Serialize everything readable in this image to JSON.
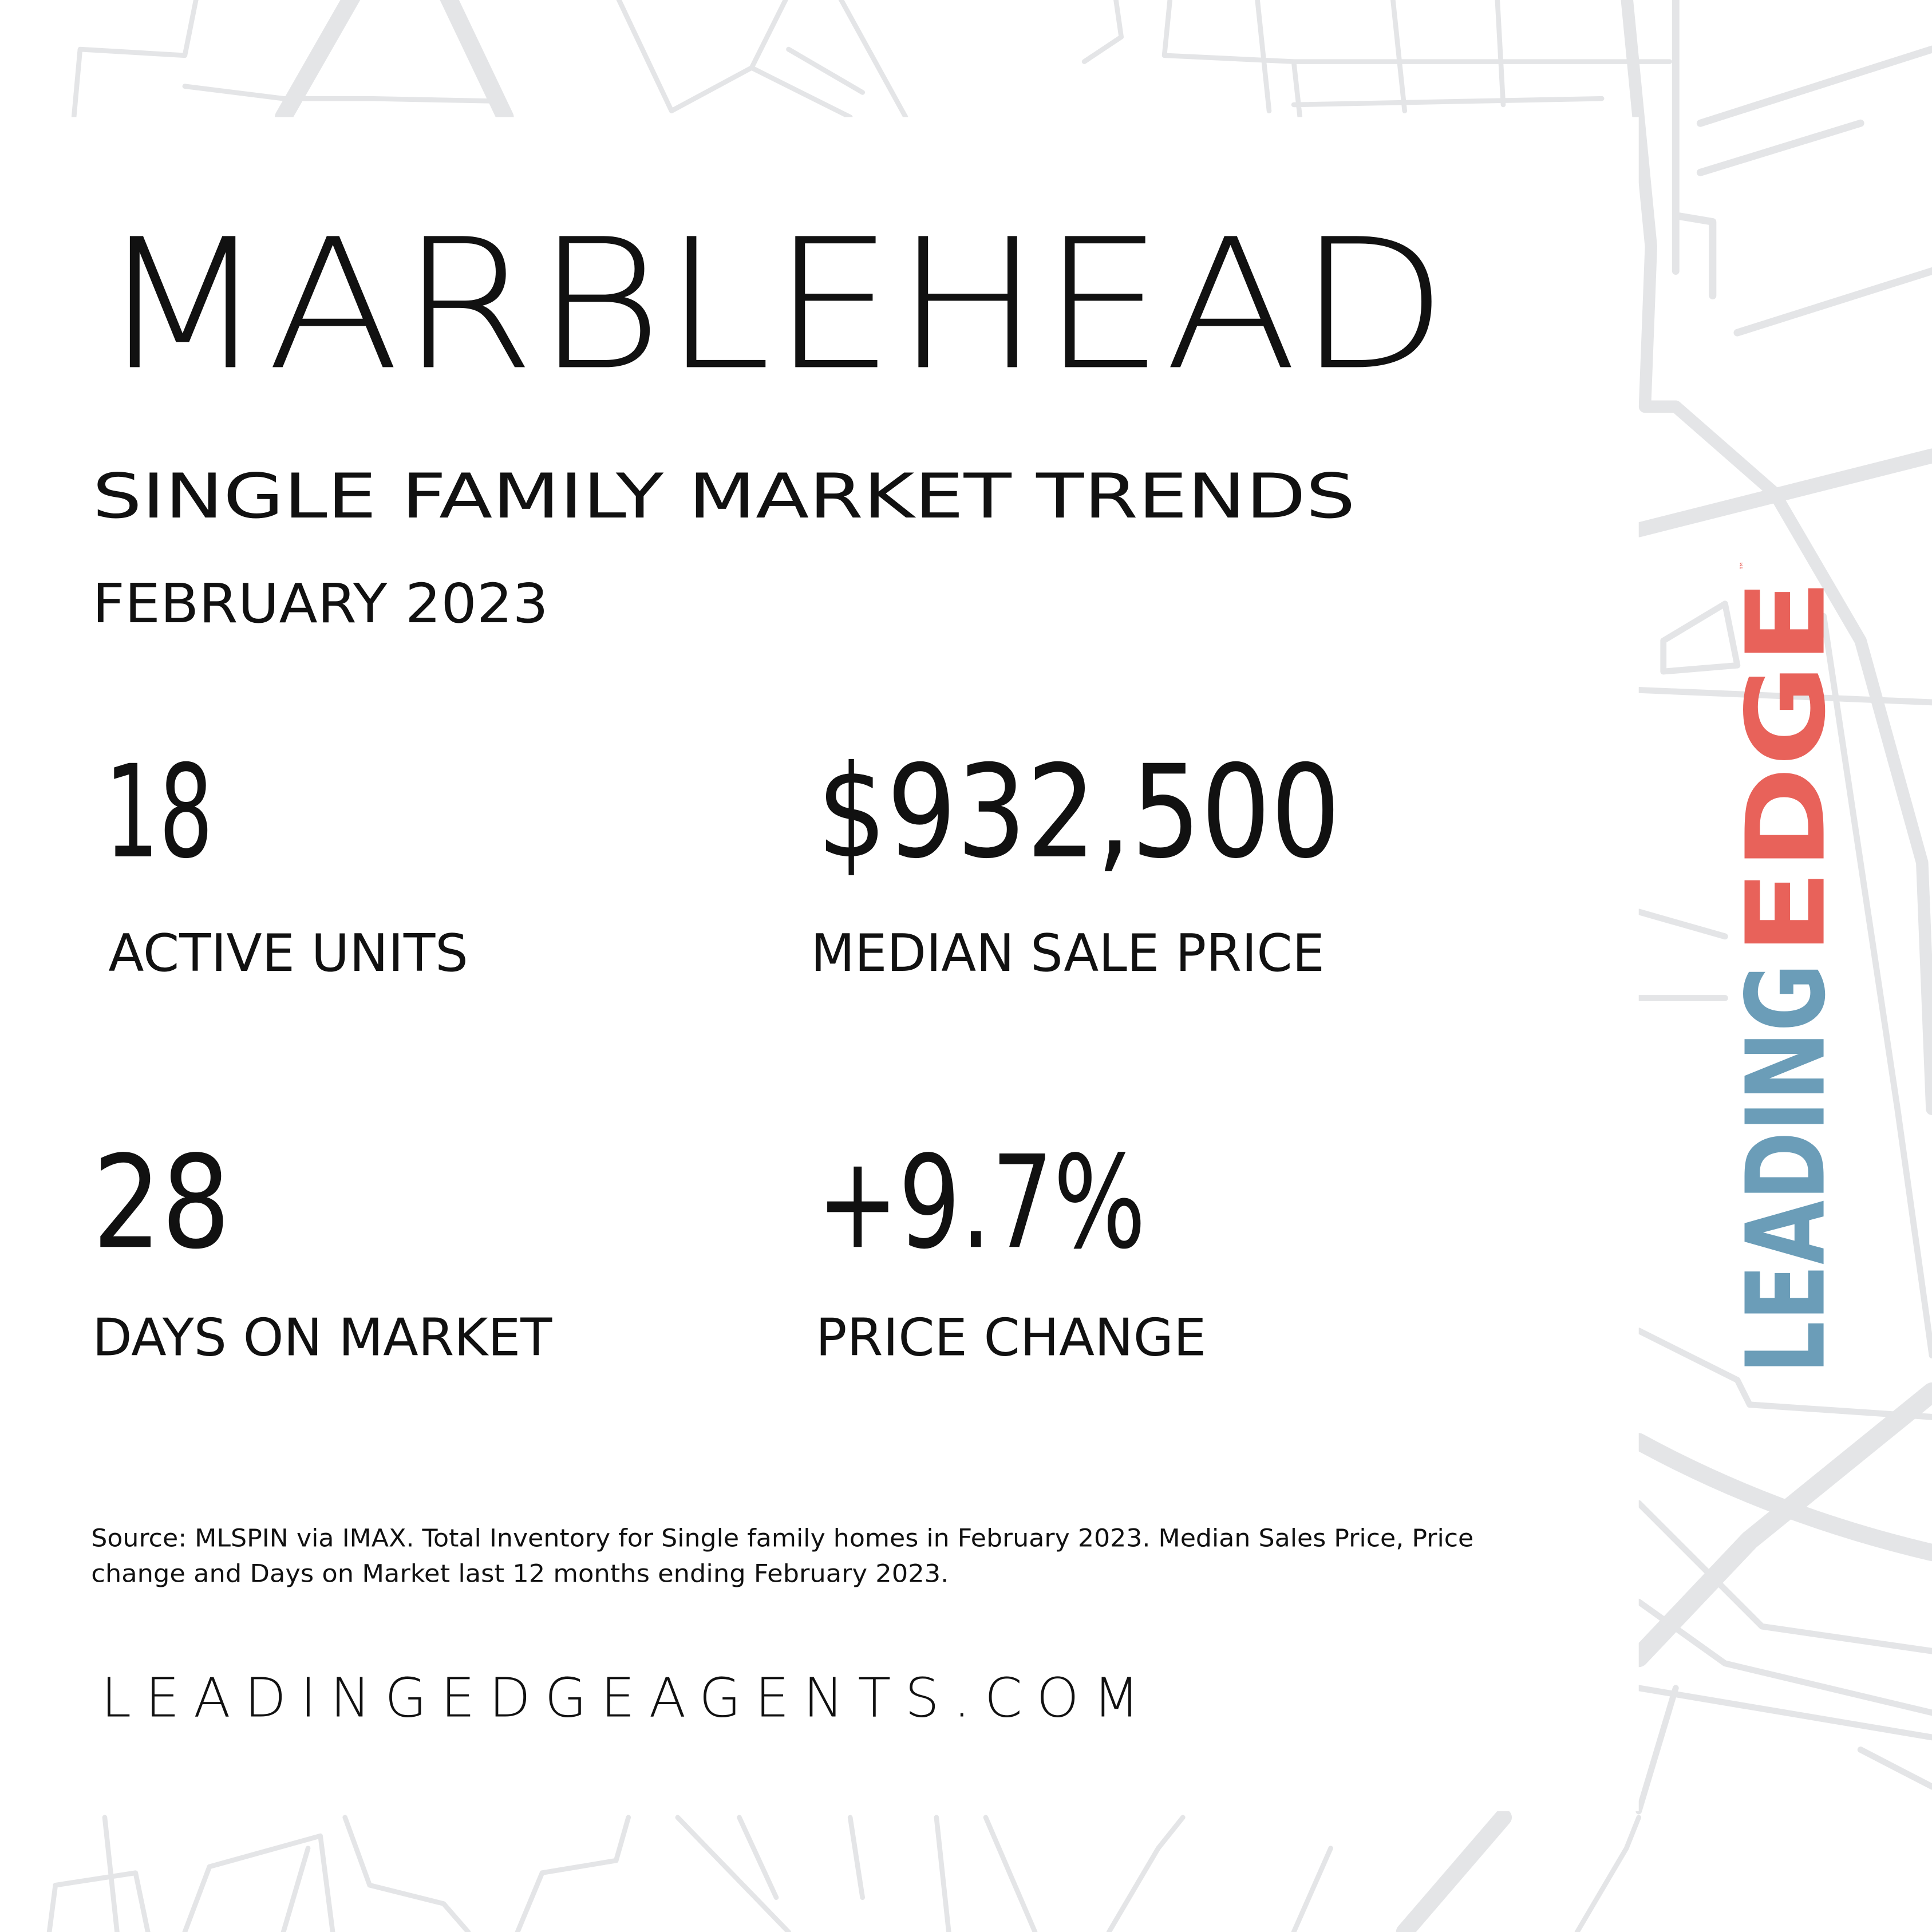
{
  "header": {
    "title": "MARBLEHEAD",
    "subtitle": "SINGLE FAMILY MARKET TRENDS",
    "date": "FEBRUARY 2023"
  },
  "stats": [
    {
      "value": "18",
      "label": "ACTIVE UNITS"
    },
    {
      "value": "$932,500",
      "label": "MEDIAN SALE PRICE"
    },
    {
      "value": "28",
      "label": "DAYS ON MARKET"
    },
    {
      "value": "+9.7%",
      "label": "PRICE CHANGE"
    }
  ],
  "source": [
    "Source: MLSPIN via IMAX. Total Inventory for Single family homes in February 2023. Median Sales Price, Price",
    "change and Days on Market last 12 months ending February 2023."
  ],
  "website": "LEADINGEDGEAGENTS.COM",
  "logo": {
    "first": "LEADING",
    "second": "EDGE",
    "mark": "™"
  }
}
